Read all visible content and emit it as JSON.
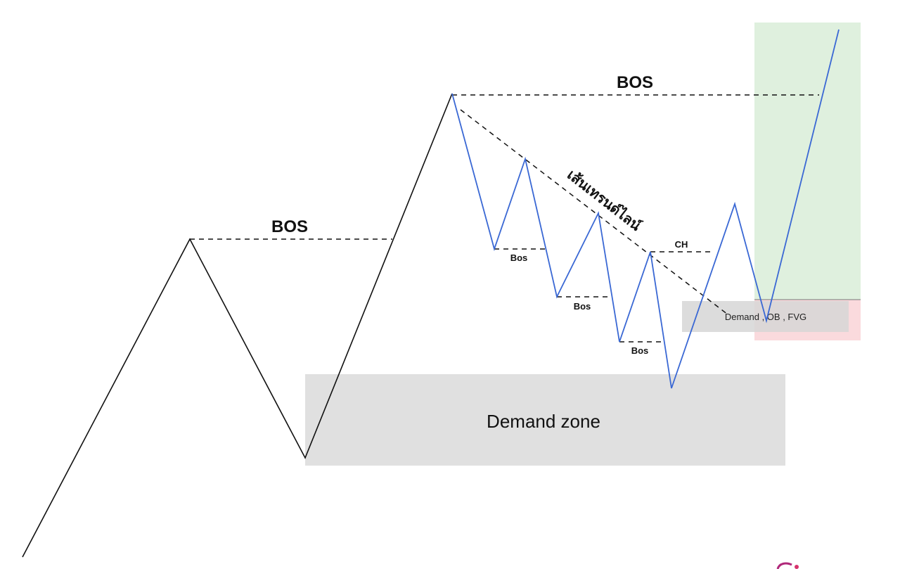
{
  "labels": {
    "bos_left": "BOS",
    "bos_top": "BOS",
    "bos_small_1": "Bos",
    "bos_small_2": "Bos",
    "bos_small_3": "Bos",
    "ch": "CH",
    "demand_zone": "Demand zone",
    "demand_ob_fvg": "Demand , OB , FVG",
    "trendline": "เส้นเทรนด์ไลน์"
  },
  "colors": {
    "up_leg": "#111111",
    "down_leg": "#3a68d4",
    "demand_zone_fill": "#e0e0e0",
    "target_zone_fill": "#dff0de",
    "stop_zone_fill": "#fadadd"
  }
}
